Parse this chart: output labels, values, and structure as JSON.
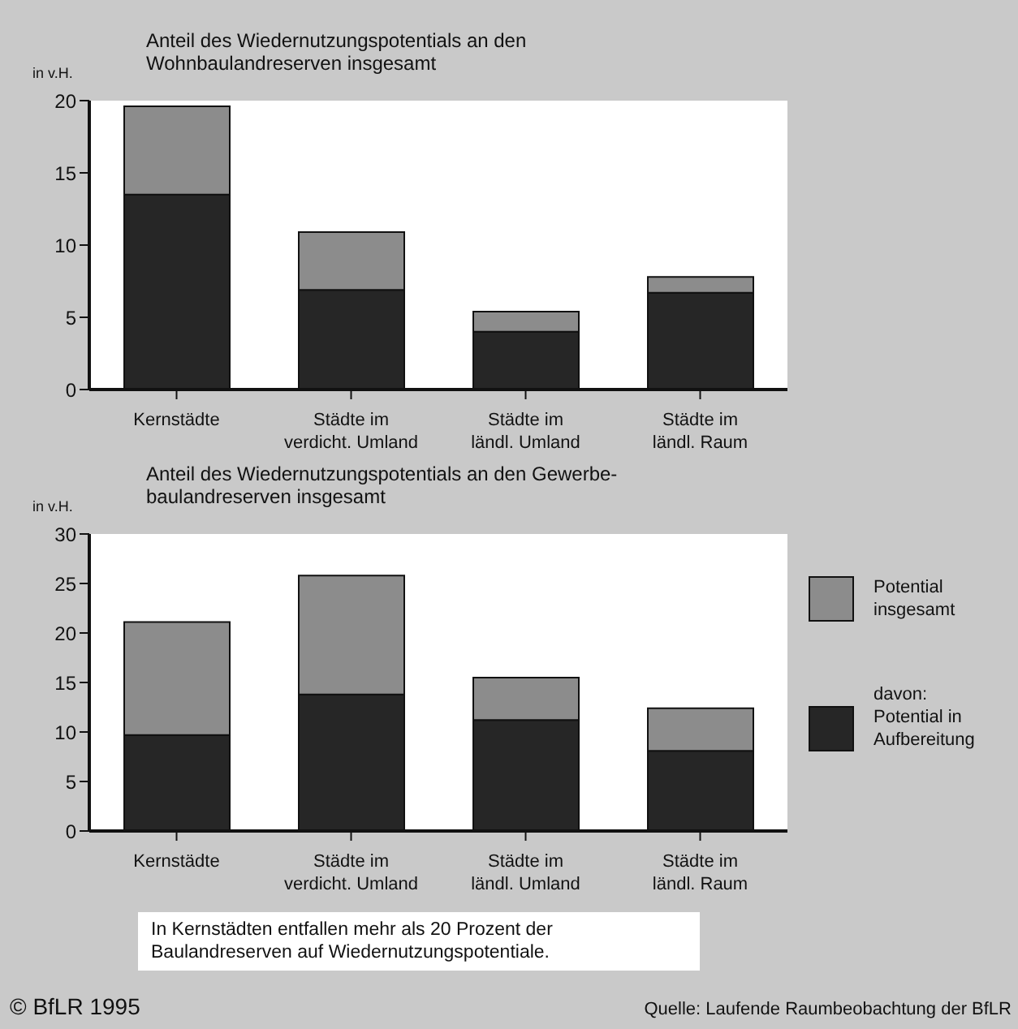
{
  "chart_data": [
    {
      "type": "bar",
      "title": "Anteil des Wiedernutzungspotentials an den\nWohnbaulandreserven insgesamt",
      "ylabel": "in v.H.",
      "categories": [
        "Kernstädte",
        "Städte im\nverdicht. Umland",
        "Städte im\nländl. Umland",
        "Städte im\nländl. Raum"
      ],
      "stacked": true,
      "series": [
        {
          "color": "#262626",
          "values": [
            13.5,
            6.9,
            4.0,
            6.7
          ]
        },
        {
          "color": "#8c8c8c",
          "values": [
            6.1,
            4.0,
            1.4,
            1.1
          ]
        }
      ],
      "ylim": [
        0,
        20
      ],
      "yticks": [
        0,
        5,
        10,
        15,
        20
      ],
      "grid": false,
      "legend": false
    },
    {
      "type": "bar",
      "title": "Anteil des Wiedernutzungspotentials an den Gewerbe-\nbaulandreserven insgesamt",
      "ylabel": "in v.H.",
      "categories": [
        "Kernstädte",
        "Städte im\nverdicht. Umland",
        "Städte im\nländl. Umland",
        "Städte im\nländl. Raum"
      ],
      "stacked": true,
      "series": [
        {
          "name": "davon:\nPotential in\nAufbereitung",
          "color": "#262626",
          "values": [
            9.7,
            13.8,
            11.2,
            8.1
          ]
        },
        {
          "name": "Potential\ninsgesamt",
          "color": "#8c8c8c",
          "values": [
            11.4,
            12.0,
            4.3,
            4.3
          ]
        }
      ],
      "ylim": [
        0,
        30
      ],
      "yticks": [
        0,
        5,
        10,
        15,
        20,
        25,
        30
      ],
      "grid": false,
      "legend": "right",
      "annotations": [
        "In Kernstädten entfallen mehr als 20 Prozent der\nBaulandreserven auf Wiedernutzungspotentiale.",
        "© BfLR 1995",
        "Quelle: Laufende Raumbeobachtung der BfLR"
      ]
    }
  ]
}
